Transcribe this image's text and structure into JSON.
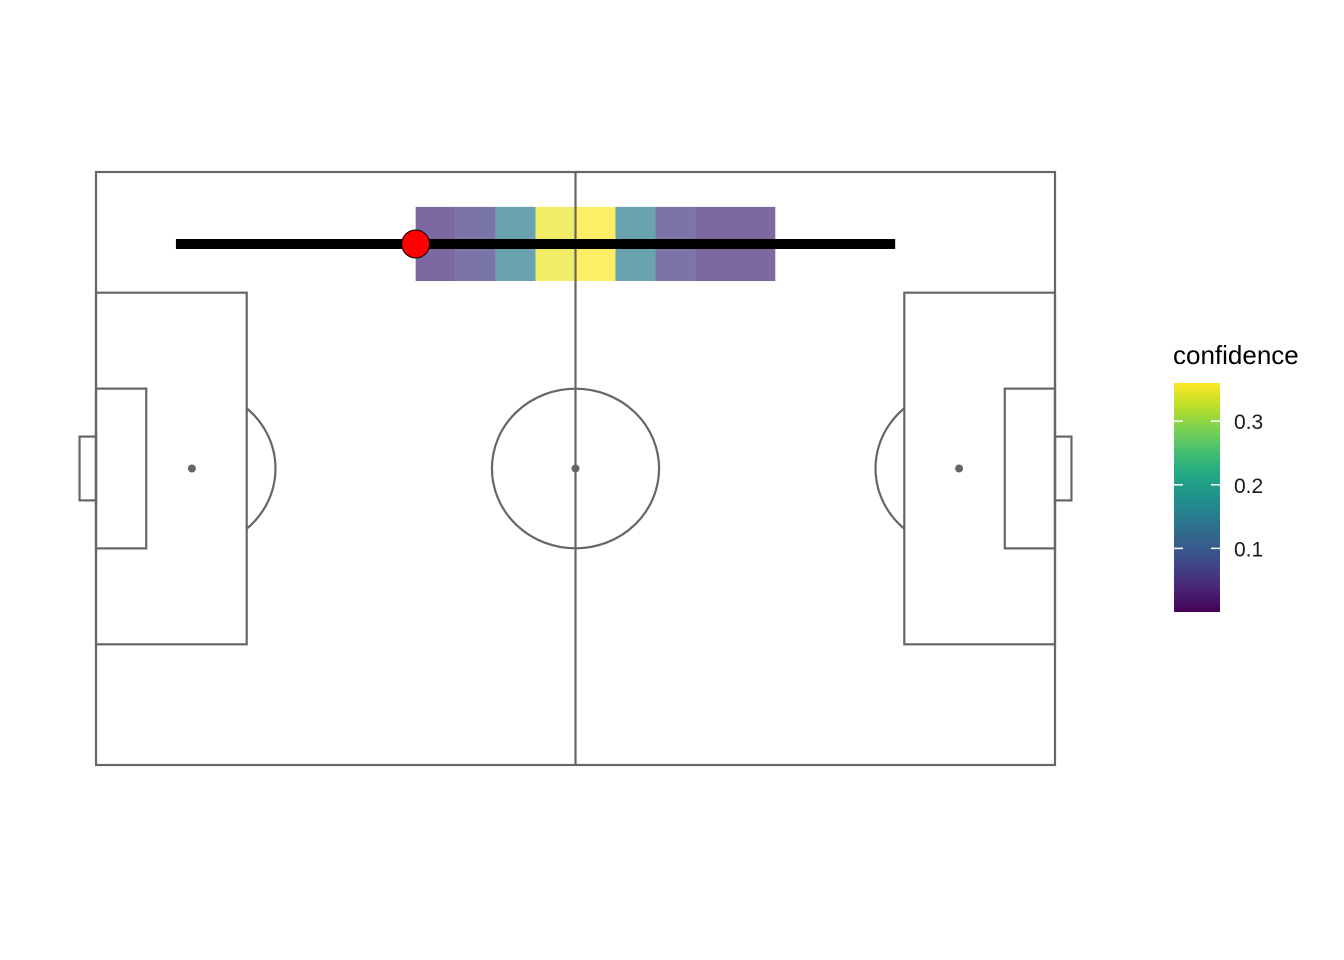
{
  "chart_data": {
    "type": "heatmap",
    "title": "",
    "xlabel": "",
    "ylabel": "",
    "pitch": {
      "length": 105,
      "width": 68,
      "line_color": "#666666"
    },
    "heatmap": {
      "cells": [
        {
          "x0": 35,
          "x1": 39.375,
          "y0": 55.5,
          "y1": 64,
          "confidence": 0.04
        },
        {
          "x0": 39.375,
          "x1": 43.75,
          "y0": 55.5,
          "y1": 64,
          "confidence": 0.06
        },
        {
          "x0": 43.75,
          "x1": 48.125,
          "y0": 55.5,
          "y1": 64,
          "confidence": 0.15
        },
        {
          "x0": 48.125,
          "x1": 52.5,
          "y0": 55.5,
          "y1": 64,
          "confidence": 0.35
        },
        {
          "x0": 52.5,
          "x1": 56.875,
          "y0": 55.5,
          "y1": 64,
          "confidence": 0.36
        },
        {
          "x0": 56.875,
          "x1": 61.25,
          "y0": 55.5,
          "y1": 64,
          "confidence": 0.15
        },
        {
          "x0": 61.25,
          "x1": 65.625,
          "y0": 55.5,
          "y1": 64,
          "confidence": 0.06
        },
        {
          "x0": 65.625,
          "x1": 74.375,
          "y0": 55.5,
          "y1": 64,
          "confidence": 0.04
        }
      ],
      "opacity": 0.7
    },
    "track_line": {
      "x": [
        8.75,
        87.5
      ],
      "y": [
        59.75,
        59.75
      ],
      "color": "#000000"
    },
    "point": {
      "x": 35,
      "y": 59.75,
      "color": "#ff0000"
    },
    "legend": {
      "title": "confidence",
      "position": "right",
      "min": 0,
      "max": 0.36,
      "ticks": [
        0.1,
        0.2,
        0.3
      ],
      "tick_labels": [
        "0.1",
        "0.2",
        "0.3"
      ],
      "colormap": "viridis"
    }
  }
}
